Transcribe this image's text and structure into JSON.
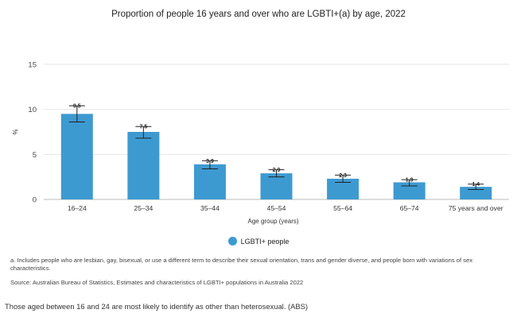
{
  "chart_data": {
    "type": "bar",
    "title": "Proportion of people 16 years and over who are LGBTI+(a) by age, 2022",
    "xlabel": "Age group (years)",
    "ylabel": "%",
    "ylim": [
      0,
      15
    ],
    "yticks": [
      "0",
      "5",
      "10",
      "15"
    ],
    "grid": true,
    "categories": [
      "16–24",
      "25–34",
      "35–44",
      "45–54",
      "55–64",
      "65–74",
      "75 years and over"
    ],
    "series": [
      {
        "name": "LGBTI+ people",
        "color": "#3d9ad1",
        "values": [
          9.5,
          7.5,
          3.9,
          2.9,
          2.3,
          1.9,
          1.4
        ],
        "value_labels": [
          "9.5",
          "7.5",
          "3.9",
          "2.9",
          "2.3",
          "1.9",
          "1.4"
        ],
        "error_low": [
          8.6,
          6.8,
          3.4,
          2.5,
          1.9,
          1.5,
          1.1
        ],
        "error_high": [
          10.4,
          8.1,
          4.3,
          3.3,
          2.7,
          2.2,
          1.7
        ]
      }
    ],
    "legend_position": "bottom"
  },
  "notes": {
    "a": "a. Includes people who are lesbian, gay, bisexual, or use a different term to describe their sexual orientation, trans and gender diverse, and people born with variations of sex characteristics.",
    "source": "Source: Australian Bureau of Statistics, Estimates and characteristics of LGBTI+ populations in Australia 2022"
  },
  "caption": "Those aged between 16 and 24 are most likely to identify as other than heterosexual. (ABS)"
}
